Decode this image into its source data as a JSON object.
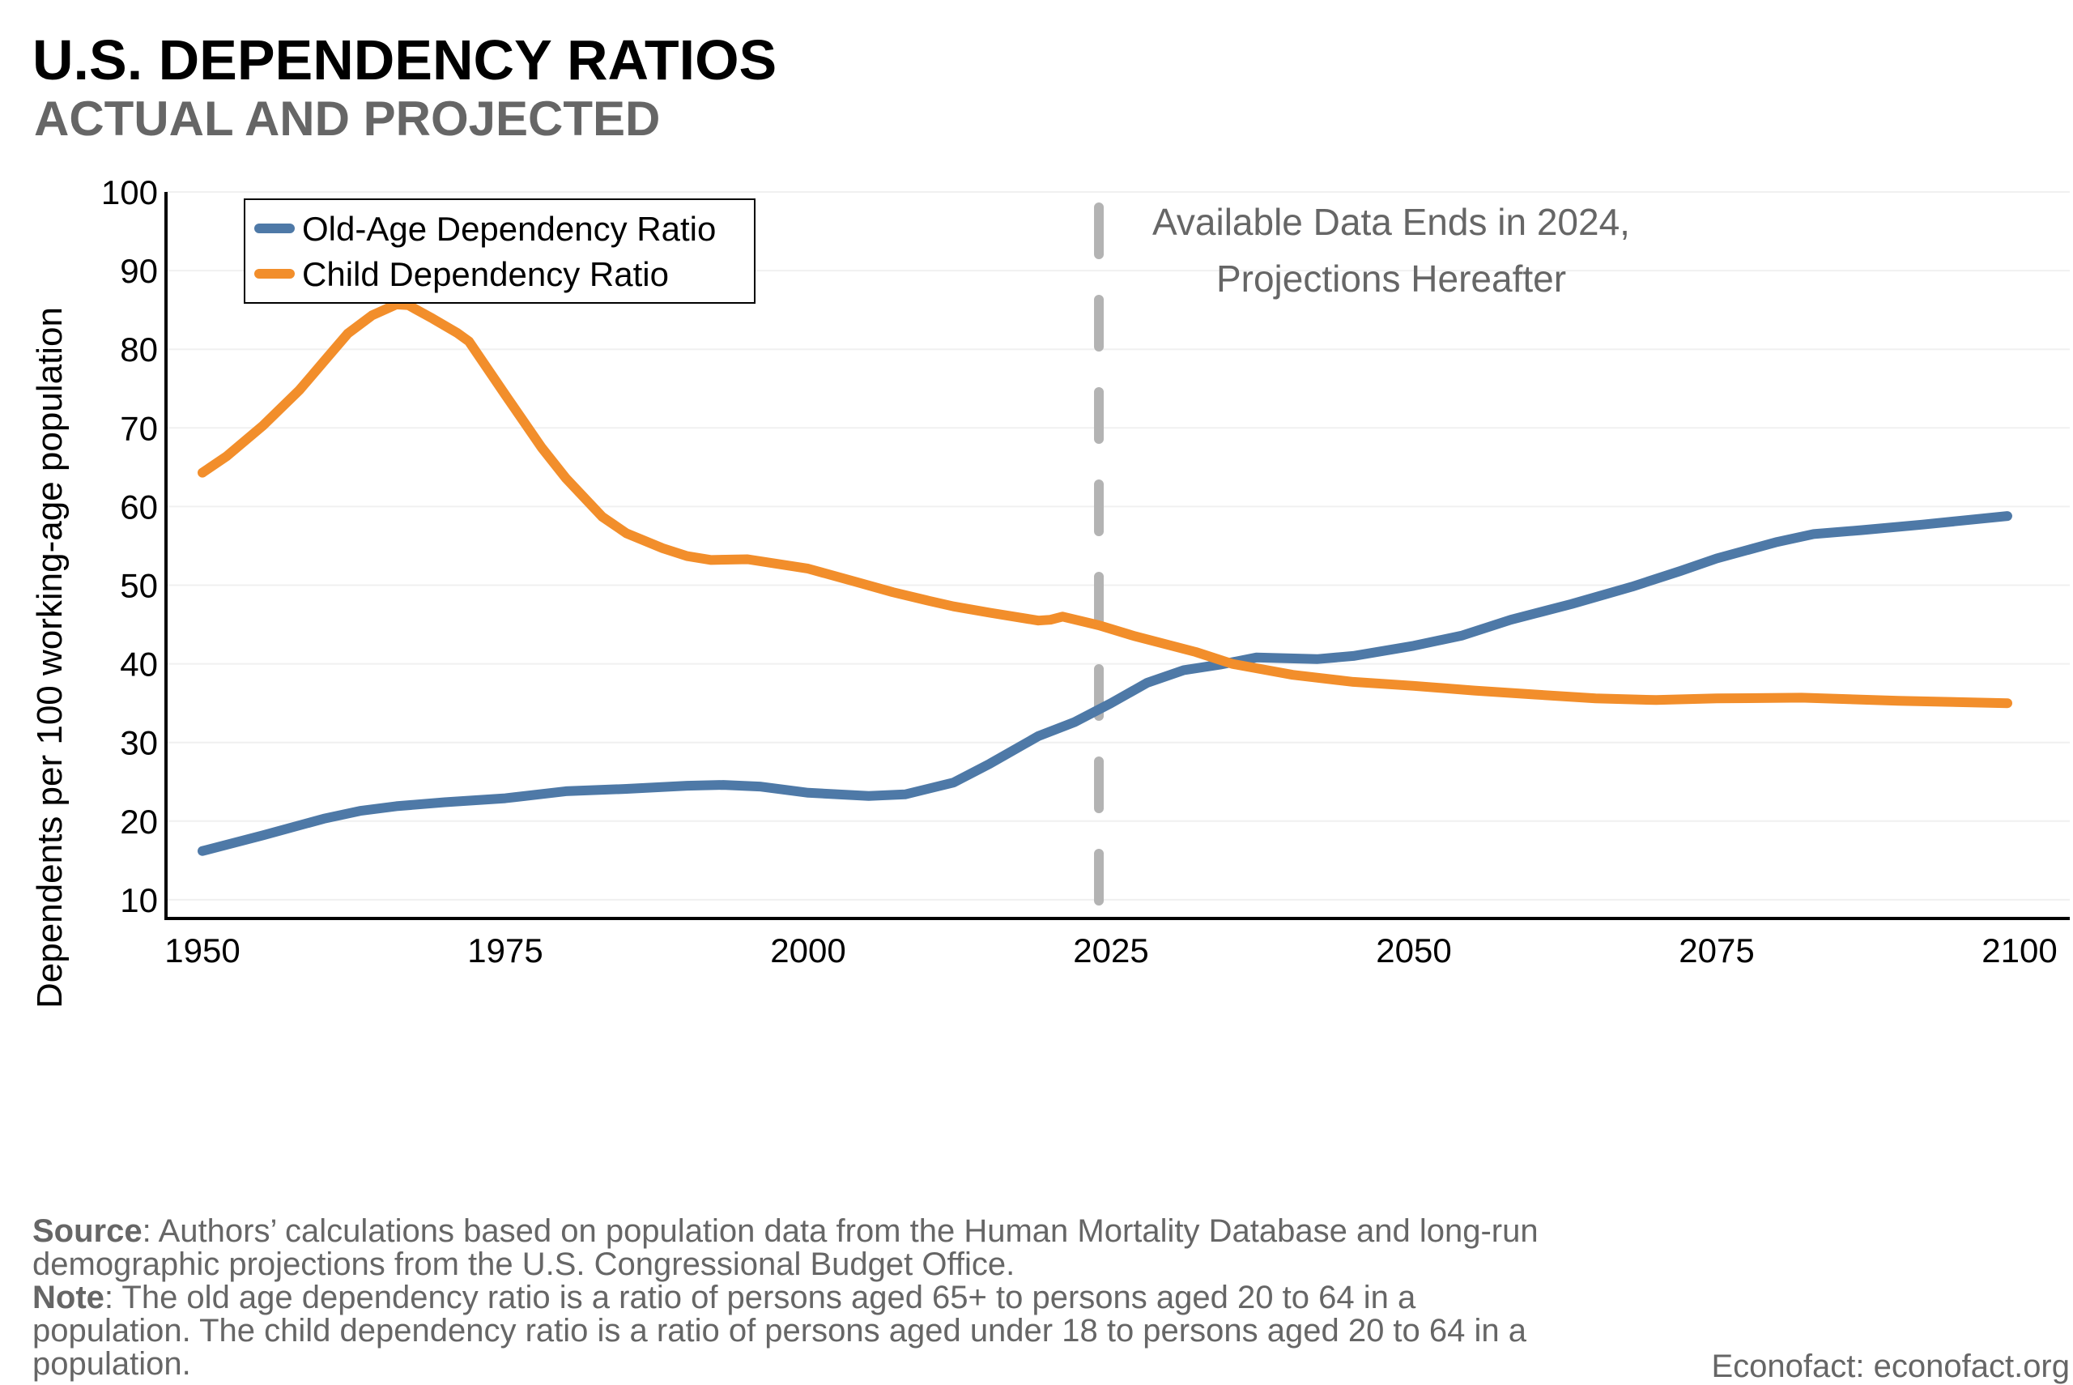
{
  "title": "U.S. DEPENDENCY RATIOS",
  "subtitle": "ACTUAL AND PROJECTED",
  "chart_data": {
    "type": "line",
    "xlabel": "",
    "ylabel": "Dependents per 100 working-age population",
    "xlim": [
      1950,
      2100
    ],
    "ylim": [
      7.7,
      100
    ],
    "xticks": [
      1950,
      1975,
      2000,
      2025,
      2050,
      2075,
      2100
    ],
    "yticks": [
      10,
      20,
      30,
      40,
      50,
      60,
      70,
      80,
      90,
      100
    ],
    "grid": "horizontal light",
    "legend_position": "top-left",
    "annotation": {
      "x": 2024,
      "line1": "Available Data Ends in 2024,",
      "line2": "Projections Hereafter",
      "color": "#b3b3b3"
    },
    "series": [
      {
        "name": "Old-Age Dependency Ratio",
        "color": "#4e79a7",
        "x": [
          1950,
          1955,
          1960,
          1963,
          1966,
          1970,
          1975,
          1980,
          1985,
          1990,
          1993,
          1996,
          2000,
          2005,
          2008,
          2012,
          2015,
          2019,
          2022,
          2025,
          2028,
          2031,
          2034,
          2037,
          2042,
          2045,
          2050,
          2054,
          2058,
          2063,
          2068,
          2072,
          2075,
          2080,
          2083,
          2087,
          2092,
          2099
        ],
        "y": [
          16.2,
          18.2,
          20.3,
          21.3,
          21.9,
          22.4,
          22.9,
          23.8,
          24.1,
          24.5,
          24.6,
          24.4,
          23.6,
          23.2,
          23.4,
          24.9,
          27.3,
          30.8,
          32.6,
          35.0,
          37.6,
          39.2,
          39.9,
          40.8,
          40.6,
          41.0,
          42.3,
          43.6,
          45.6,
          47.6,
          49.8,
          51.8,
          53.4,
          55.5,
          56.5,
          57.0,
          57.7,
          58.8
        ]
      },
      {
        "name": "Child Dependency Ratio",
        "color": "#f28e2b",
        "x": [
          1950,
          1952,
          1955,
          1958,
          1960,
          1962,
          1964,
          1966,
          1967,
          1969,
          1971,
          1972,
          1975,
          1978,
          1980,
          1983,
          1985,
          1988,
          1990,
          1992,
          1995,
          2000,
          2004,
          2007,
          2010,
          2012,
          2015,
          2019,
          2020,
          2021,
          2024,
          2027,
          2032,
          2035,
          2040,
          2045,
          2050,
          2055,
          2060,
          2065,
          2070,
          2075,
          2082,
          2090,
          2099
        ],
        "y": [
          64.3,
          66.4,
          70.3,
          74.8,
          78.4,
          82.0,
          84.3,
          85.7,
          85.6,
          83.9,
          82.1,
          81.0,
          74.2,
          67.5,
          63.6,
          58.7,
          56.6,
          54.7,
          53.7,
          53.2,
          53.3,
          52.1,
          50.4,
          49.1,
          48.0,
          47.3,
          46.5,
          45.5,
          45.6,
          46.0,
          44.9,
          43.5,
          41.5,
          40.0,
          38.6,
          37.7,
          37.2,
          36.6,
          36.1,
          35.6,
          35.4,
          35.6,
          35.7,
          35.3,
          35.0
        ]
      }
    ]
  },
  "footnote": {
    "source_label": "Source",
    "source_text": ": Authors’ calculations based on population data from the Human Mortality Database and long-run demographic projections from the U.S. Congressional Budget Office.",
    "note_label": "Note",
    "note_text": ": The old age dependency ratio is a ratio of persons aged 65+ to persons aged 20 to 64 in a population. The child dependency ratio is a ratio of persons aged under 18 to persons aged 20 to 64 in a population."
  },
  "credit": "Econofact: econofact.org"
}
